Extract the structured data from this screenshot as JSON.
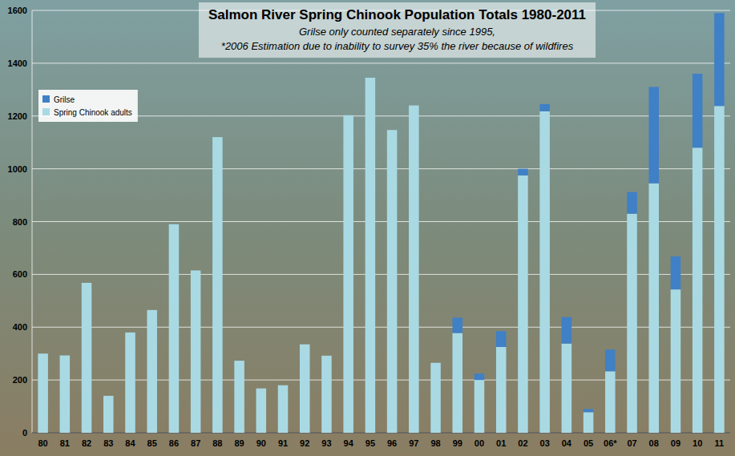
{
  "chart_data": {
    "type": "bar",
    "stacked": true,
    "title": "Salmon River Spring Chinook Population Totals 1980-2011",
    "subtitle": [
      "Grilse only counted separately since 1995,",
      "*2006 Estimation due to inability to survey 35% the river because of wildfires"
    ],
    "categories": [
      "80",
      "81",
      "82",
      "83",
      "84",
      "85",
      "86",
      "87",
      "88",
      "89",
      "90",
      "91",
      "92",
      "93",
      "94",
      "95",
      "96",
      "97",
      "98",
      "99",
      "00",
      "01",
      "02",
      "03",
      "04",
      "05",
      "06*",
      "07",
      "08",
      "09",
      "10",
      "11"
    ],
    "series": [
      {
        "name": "Spring Chinook adults",
        "color": "#a9dae4",
        "values": [
          300,
          293,
          568,
          140,
          380,
          465,
          790,
          615,
          1120,
          273,
          168,
          180,
          335,
          292,
          1203,
          1345,
          1147,
          1240,
          265,
          378,
          200,
          325,
          975,
          1218,
          338,
          78,
          233,
          830,
          945,
          543,
          1080,
          1238
        ]
      },
      {
        "name": "Grilse",
        "color": "#3f80c6",
        "values": [
          null,
          null,
          null,
          null,
          null,
          null,
          null,
          null,
          null,
          null,
          null,
          null,
          null,
          null,
          null,
          null,
          null,
          null,
          null,
          58,
          24,
          60,
          25,
          27,
          100,
          12,
          82,
          82,
          365,
          125,
          280,
          352
        ]
      }
    ],
    "ylim": [
      0,
      1600
    ],
    "yticks": [
      0,
      200,
      400,
      600,
      800,
      1000,
      1200,
      1400,
      1600
    ],
    "grid": true,
    "legend": "upper left"
  }
}
